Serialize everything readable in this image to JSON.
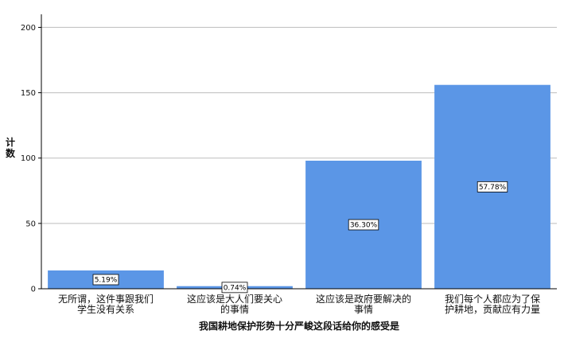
{
  "chart_data": {
    "type": "bar",
    "xlabel": "我国耕地保护形势十分严峻这段话给你的感受是",
    "ylabel": "计数",
    "ylim": [
      0,
      210
    ],
    "yticks": [
      0,
      50,
      100,
      150,
      200
    ],
    "grid": true,
    "legend": "none",
    "bar_color": "#5B96E6",
    "categories": [
      [
        "无所谓，这件事跟我们",
        "学生没有关系"
      ],
      [
        "这应该是大人们要关心",
        "的事情"
      ],
      [
        "这应该是政府要解决的",
        "事情"
      ],
      [
        "我们每个人都应为了保",
        "护耕地，贡献应有力量"
      ]
    ],
    "values": [
      14,
      2,
      98,
      156
    ],
    "data_labels": [
      "5.19%",
      "0.74%",
      "36.30%",
      "57.78%"
    ]
  }
}
